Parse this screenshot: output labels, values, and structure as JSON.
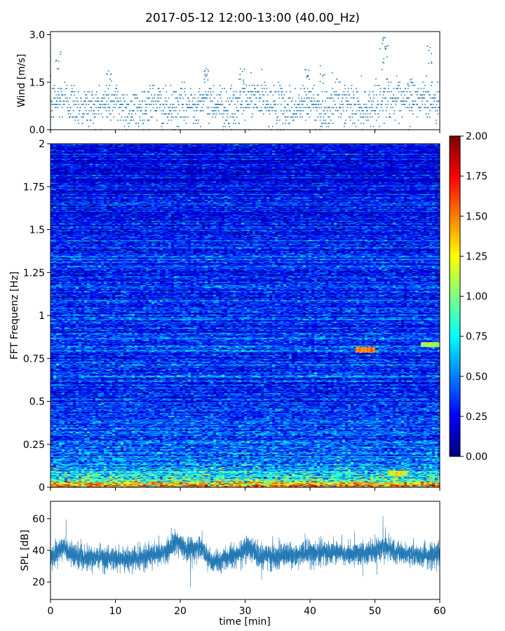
{
  "figure": {
    "title": "2017-05-12 12:00-13:00 (40.00_Hz)"
  },
  "chart_data": [
    {
      "type": "scatter",
      "name_hint": "wind",
      "ylabel": "Wind [m/s]",
      "xlim": [
        0,
        60
      ],
      "ylim": [
        0,
        3.1
      ],
      "yticks": [
        "0.0",
        "1.5",
        "3.0"
      ],
      "ytick_values": [
        0,
        1.5,
        3.0
      ],
      "color": "#1f77b4",
      "profile": {
        "x": [
          0,
          2,
          4,
          6,
          8,
          10,
          12,
          14,
          16,
          18,
          20,
          22,
          24,
          26,
          28,
          30,
          32,
          34,
          36,
          38,
          40,
          42,
          44,
          46,
          48,
          50,
          52,
          54,
          56,
          58,
          60
        ],
        "mean": [
          0.8,
          1.0,
          0.8,
          0.7,
          0.8,
          0.9,
          0.6,
          0.7,
          0.9,
          0.6,
          0.7,
          0.8,
          1.0,
          0.8,
          0.6,
          0.9,
          1.0,
          0.8,
          0.7,
          0.7,
          0.9,
          0.6,
          0.9,
          0.8,
          0.7,
          0.8,
          1.1,
          0.8,
          0.9,
          1.0,
          0.8
        ]
      },
      "peaks": [
        [
          1.2,
          2.5
        ],
        [
          9.0,
          1.9
        ],
        [
          24.0,
          2.05
        ],
        [
          29.5,
          1.95
        ],
        [
          39.5,
          1.95
        ],
        [
          42.0,
          2.05
        ],
        [
          51.2,
          3.0
        ],
        [
          51.6,
          2.7
        ],
        [
          55.5,
          1.8
        ],
        [
          58.5,
          2.65
        ]
      ]
    },
    {
      "type": "heatmap",
      "name_hint": "spectrogram",
      "ylabel": "FFT Frequenz [Hz]",
      "xlim": [
        0,
        60
      ],
      "ylim": [
        0,
        2
      ],
      "yticks": [
        "0",
        "0.25",
        "0.5",
        "0.75",
        "1",
        "1.25",
        "1.5",
        "1.75",
        "2"
      ],
      "ytick_values": [
        0,
        0.25,
        0.5,
        0.75,
        1,
        1.25,
        1.5,
        1.75,
        2
      ],
      "colorbar": {
        "range": [
          0,
          2
        ],
        "ticks": [
          "0.00",
          "0.25",
          "0.50",
          "0.75",
          "1.00",
          "1.25",
          "1.50",
          "1.75",
          "2.00"
        ],
        "tick_values": [
          0,
          0.25,
          0.5,
          0.75,
          1,
          1.25,
          1.5,
          1.75,
          2
        ],
        "colormap": "jet"
      },
      "mean_by_frequency": {
        "freq": [
          0,
          0.02,
          0.05,
          0.1,
          0.15,
          0.25,
          0.35,
          0.5,
          0.75,
          1.0,
          1.25,
          1.5,
          1.75,
          2.0
        ],
        "value": [
          1.6,
          1.2,
          0.8,
          0.6,
          0.5,
          0.42,
          0.38,
          0.35,
          0.33,
          0.3,
          0.28,
          0.26,
          0.22,
          0.2
        ]
      },
      "hot_spots": [
        {
          "time": [
            47,
            50
          ],
          "freq": 0.8,
          "value": 1.5
        },
        {
          "time": [
            57,
            60
          ],
          "freq": 0.83,
          "value": 1.1
        },
        {
          "time": [
            52,
            55
          ],
          "freq": 0.08,
          "value": 1.2
        }
      ]
    },
    {
      "type": "line",
      "name_hint": "spl",
      "ylabel": "SPL [dB]",
      "xlabel": "time [min]",
      "xlim": [
        0,
        60
      ],
      "ylim": [
        9,
        71
      ],
      "yticks": [
        "20",
        "40",
        "60"
      ],
      "ytick_values": [
        20,
        40,
        60
      ],
      "xticks": [
        "0",
        "10",
        "20",
        "30",
        "40",
        "50",
        "60"
      ],
      "xtick_values": [
        0,
        10,
        20,
        30,
        40,
        50,
        60
      ],
      "color": "#1f77b4",
      "profile": {
        "x": [
          0,
          2,
          3,
          5,
          8,
          10,
          12,
          14,
          16,
          18,
          19.5,
          21,
          23,
          25,
          27,
          29,
          30,
          32,
          34,
          36,
          38,
          40,
          42,
          44,
          46,
          48,
          50,
          51.5,
          53,
          55,
          57,
          60
        ],
        "mean": [
          36,
          42,
          38,
          36,
          35,
          35,
          34,
          35,
          37,
          39,
          46,
          40,
          42,
          32,
          35,
          37,
          42,
          37,
          36,
          36,
          37,
          39,
          38,
          39,
          38,
          38,
          38,
          43,
          39,
          37,
          37,
          38
        ]
      }
    }
  ]
}
